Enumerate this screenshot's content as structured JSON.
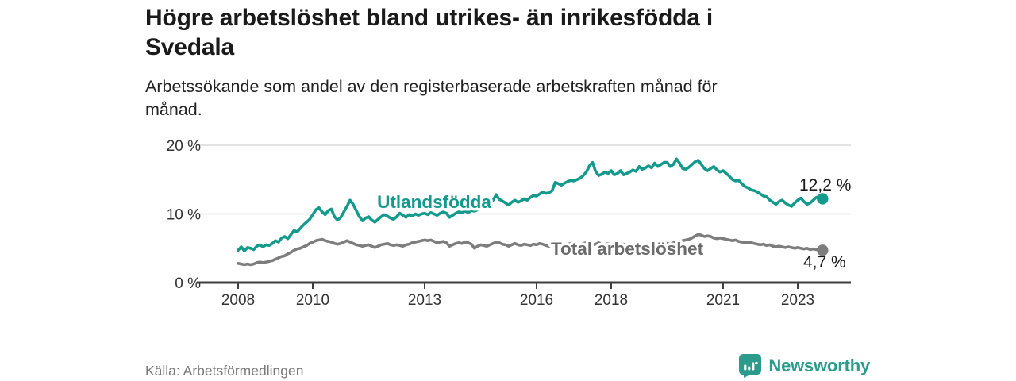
{
  "header": {
    "title_line1": "Högre arbetslöshet bland utrikes- än inrikesfödda i",
    "title_line2": "Svedala",
    "subtitle_line1": "Arbetssökande som andel av den registerbaserade arbetskraften månad för",
    "subtitle_line2": "månad."
  },
  "footer": {
    "source": "Källa: Arbetsförmedlingen",
    "brand": "Newsworthy"
  },
  "colors": {
    "accent_teal": "#149a8c",
    "brand_teal": "#2a9b8d",
    "line_gray": "#7d7d7d",
    "label_gray": "#6b6b6b",
    "grid": "#dadada",
    "axis": "#3f3f3f",
    "text_dark": "#1a1a1a",
    "source_text": "#7a7a7a"
  },
  "chart_data": {
    "type": "line",
    "title": "Högre arbetslöshet bland utrikes- än inrikesfödda i Svedala",
    "subtitle": "Arbetssökande som andel av den registerbaserade arbetskraften månad för månad.",
    "x_unit": "month",
    "x_start": "2008-01",
    "x_end": "2023-09",
    "x_ticks": [
      2008,
      2010,
      2013,
      2016,
      2018,
      2021,
      2023
    ],
    "y_ticks": [
      0,
      10,
      20
    ],
    "y_suffix": " %",
    "ylim": [
      0,
      20
    ],
    "grid": "horizontal",
    "legend_position": "inline-labels",
    "series": [
      {
        "name": "Utlandsfödda",
        "color": "#149a8c",
        "end_value": 12.2,
        "end_label": "12,2 %",
        "values": [
          4.7,
          5.2,
          4.6,
          5.1,
          5.0,
          4.8,
          5.3,
          5.5,
          5.2,
          5.5,
          5.4,
          5.7,
          6.1,
          5.9,
          6.5,
          6.7,
          6.4,
          7.0,
          7.6,
          7.4,
          7.9,
          8.4,
          8.8,
          9.2,
          9.9,
          10.6,
          10.9,
          10.3,
          9.9,
          10.5,
          10.7,
          9.6,
          9.1,
          9.5,
          10.3,
          11.1,
          12.0,
          11.4,
          10.5,
          9.6,
          9.0,
          9.4,
          9.6,
          9.1,
          8.8,
          9.2,
          9.6,
          9.9,
          9.7,
          9.4,
          9.2,
          9.6,
          10.1,
          9.8,
          9.5,
          9.9,
          9.7,
          10.0,
          9.8,
          10.0,
          10.1,
          9.9,
          10.2,
          10.0,
          9.8,
          10.1,
          10.3,
          10.1,
          9.5,
          9.8,
          10.1,
          10.3,
          10.2,
          10.4,
          10.2,
          10.5,
          10.4,
          10.6,
          10.9,
          11.3,
          11.1,
          11.6,
          12.0,
          12.8,
          12.1,
          11.9,
          11.6,
          11.3,
          11.7,
          12.0,
          11.7,
          11.9,
          12.2,
          12.0,
          12.4,
          12.7,
          12.6,
          12.9,
          13.2,
          13.0,
          13.1,
          13.4,
          14.6,
          14.4,
          14.2,
          14.5,
          14.7,
          14.9,
          14.8,
          15.0,
          15.2,
          15.6,
          16.1,
          17.0,
          17.5,
          16.2,
          15.6,
          15.8,
          16.1,
          15.9,
          16.3,
          15.7,
          15.9,
          16.3,
          15.7,
          15.9,
          16.1,
          16.4,
          16.2,
          16.9,
          16.5,
          16.7,
          17.0,
          16.7,
          17.4,
          16.9,
          17.2,
          17.5,
          17.5,
          16.9,
          17.2,
          18.0,
          17.4,
          16.6,
          16.5,
          16.8,
          17.2,
          17.6,
          17.8,
          17.2,
          16.6,
          16.3,
          16.6,
          16.9,
          16.4,
          16.1,
          16.3,
          15.9,
          15.5,
          15.0,
          14.8,
          14.9,
          14.4,
          14.0,
          13.8,
          13.5,
          13.4,
          13.2,
          12.9,
          12.6,
          12.5,
          12.0,
          11.7,
          11.4,
          11.8,
          12.0,
          11.6,
          11.3,
          11.1,
          11.6,
          12.0,
          12.3,
          11.8,
          11.4,
          11.6,
          12.0,
          12.4,
          12.5,
          12.2
        ]
      },
      {
        "name": "Total arbetslöshet",
        "color": "#7d7d7d",
        "end_value": 4.7,
        "end_label": "4,7 %",
        "values": [
          2.8,
          2.7,
          2.6,
          2.7,
          2.6,
          2.7,
          2.9,
          3.0,
          2.9,
          3.0,
          3.1,
          3.2,
          3.4,
          3.6,
          3.8,
          3.9,
          4.2,
          4.4,
          4.7,
          4.9,
          5.0,
          5.2,
          5.4,
          5.7,
          5.9,
          6.1,
          6.2,
          6.3,
          6.1,
          6.0,
          5.9,
          5.7,
          5.6,
          5.7,
          5.9,
          6.1,
          5.9,
          5.7,
          5.5,
          5.4,
          5.3,
          5.4,
          5.5,
          5.3,
          5.1,
          5.3,
          5.5,
          5.6,
          5.7,
          5.5,
          5.4,
          5.5,
          5.4,
          5.3,
          5.5,
          5.6,
          5.8,
          5.9,
          6.0,
          6.1,
          6.2,
          6.1,
          6.2,
          6.0,
          5.8,
          5.9,
          6.0,
          5.8,
          5.3,
          5.5,
          5.7,
          5.8,
          5.7,
          5.9,
          5.8,
          5.6,
          5.0,
          5.3,
          5.5,
          5.4,
          5.3,
          5.5,
          5.7,
          5.9,
          5.8,
          5.6,
          5.5,
          5.3,
          5.5,
          5.7,
          5.5,
          5.4,
          5.6,
          5.5,
          5.4,
          5.6,
          5.5,
          5.7,
          5.6,
          5.4,
          5.3,
          5.5,
          5.6,
          5.4,
          5.3,
          5.4,
          5.6,
          5.7,
          5.6,
          5.4,
          5.5,
          5.7,
          5.8,
          5.6,
          5.5,
          5.6,
          5.8,
          5.6,
          5.5,
          5.7,
          5.6,
          5.4,
          5.3,
          5.5,
          5.6,
          5.4,
          5.3,
          5.4,
          5.6,
          5.5,
          5.4,
          5.5,
          5.5,
          5.6,
          5.8,
          5.6,
          5.7,
          5.8,
          5.7,
          5.6,
          5.8,
          5.9,
          6.0,
          6.1,
          6.2,
          6.3,
          6.5,
          6.8,
          7.0,
          6.9,
          6.7,
          6.8,
          6.7,
          6.5,
          6.4,
          6.5,
          6.4,
          6.3,
          6.2,
          6.1,
          6.2,
          6.0,
          5.9,
          5.8,
          5.9,
          5.8,
          5.7,
          5.6,
          5.5,
          5.6,
          5.4,
          5.5,
          5.3,
          5.2,
          5.3,
          5.2,
          5.1,
          5.2,
          5.1,
          5.0,
          5.1,
          5.0,
          4.9,
          5.0,
          4.8,
          4.9,
          4.8,
          4.8,
          4.7
        ]
      }
    ]
  }
}
